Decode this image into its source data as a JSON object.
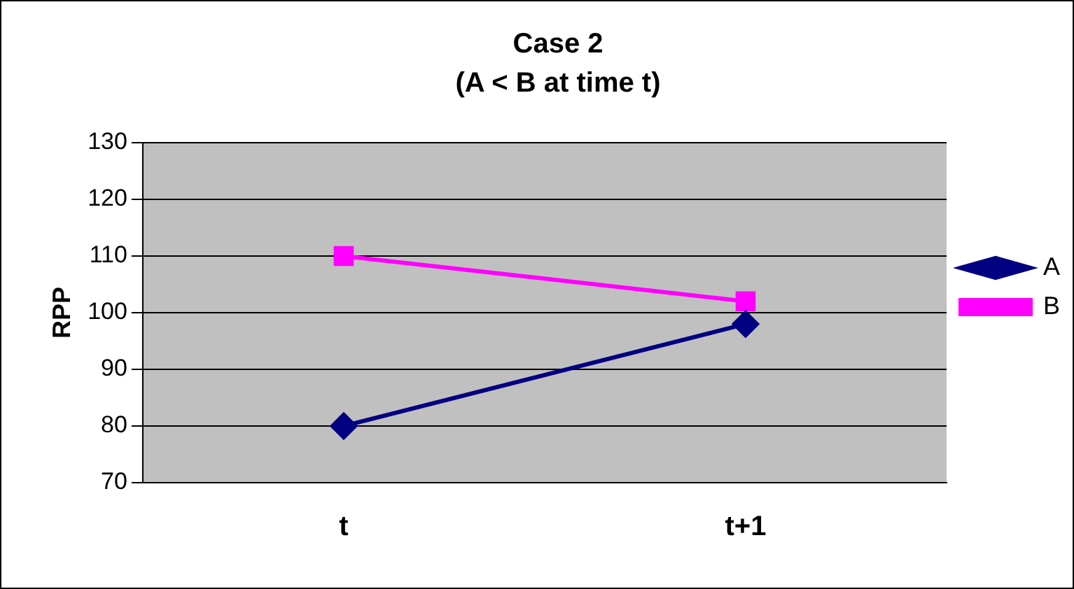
{
  "chart_data": {
    "type": "line",
    "title": "Case 2",
    "subtitle": "(A < B at time t)",
    "ylabel": "RPP",
    "categories": [
      "t",
      "t+1"
    ],
    "series": [
      {
        "name": "A",
        "color": "#000080",
        "values": [
          80,
          98
        ],
        "marker": "diamond"
      },
      {
        "name": "B",
        "color": "#ff00ff",
        "values": [
          110,
          102
        ],
        "marker": "square"
      }
    ],
    "ylim": [
      70,
      130
    ],
    "yticks": [
      70,
      80,
      90,
      100,
      110,
      120,
      130
    ],
    "grid": "y",
    "legend": "right",
    "line_style": "solid"
  }
}
